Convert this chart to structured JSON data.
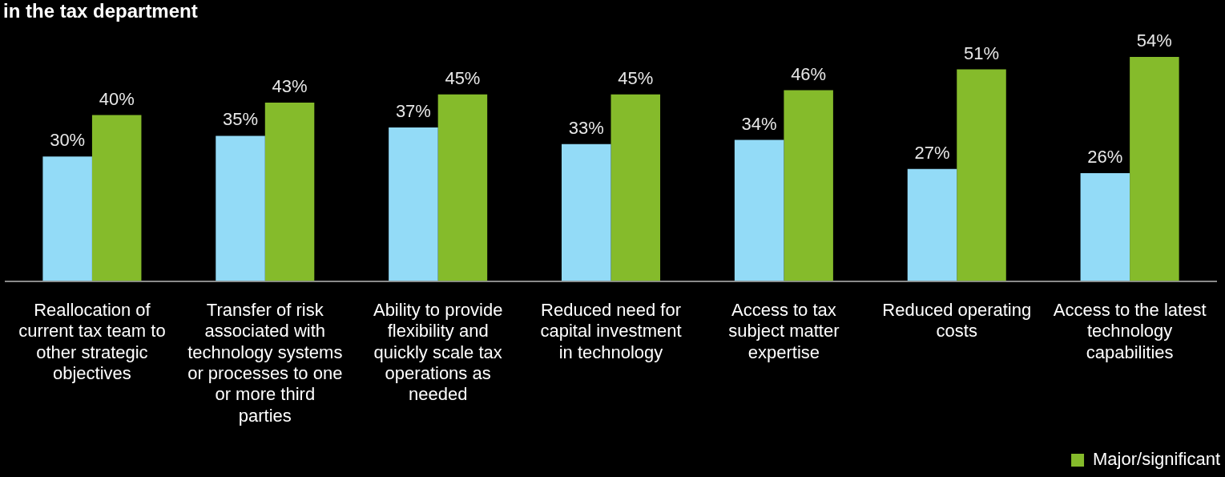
{
  "chart_data": {
    "type": "bar",
    "title": "in the tax department",
    "categories": [
      "Reallocation of current tax team to other strategic objectives",
      "Transfer of risk associated with technology systems or processes to one or more third parties",
      "Ability to provide flexibility and quickly scale tax operations as needed",
      "Reduced need for capital investment in technology",
      "Access to tax subject matter expertise",
      "Reduced operating costs",
      "Access to the latest technology capabilities"
    ],
    "series": [
      {
        "color": "#93dbf7",
        "values": [
          30,
          35,
          37,
          33,
          34,
          27,
          26
        ],
        "value_labels": [
          "30%",
          "35%",
          "37%",
          "33%",
          "34%",
          "27%",
          "26%"
        ]
      },
      {
        "name": "Major/significant",
        "color": "#85bb2b",
        "values": [
          40,
          43,
          45,
          45,
          46,
          51,
          54
        ],
        "value_labels": [
          "40%",
          "43%",
          "45%",
          "45%",
          "46%",
          "51%",
          "54%"
        ]
      }
    ],
    "legend": "bottom right"
  }
}
